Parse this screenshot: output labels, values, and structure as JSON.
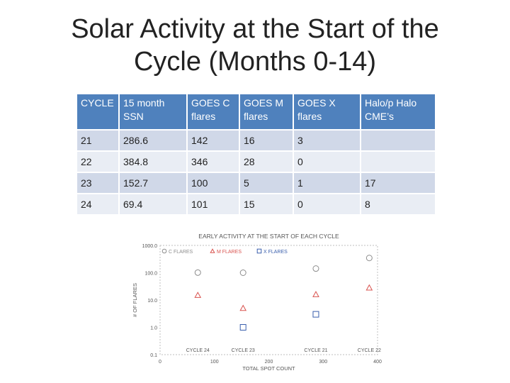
{
  "slide": {
    "title_line1": "Solar Activity at the Start of the",
    "title_line2": "Cycle (Months 0-14)"
  },
  "table": {
    "headers": [
      [
        "CYCLE",
        ""
      ],
      [
        "15 month",
        "SSN"
      ],
      [
        "GOES C",
        "flares"
      ],
      [
        "GOES M",
        "flares"
      ],
      [
        "GOES X",
        "flares"
      ],
      [
        "Halo/p Halo",
        "CME’s"
      ]
    ],
    "rows": [
      [
        "21",
        "286.6",
        "142",
        "16",
        "3",
        ""
      ],
      [
        "22",
        "384.8",
        "346",
        "28",
        "0",
        ""
      ],
      [
        "23",
        "152.7",
        "100",
        "5",
        "1",
        "17"
      ],
      [
        "24",
        "69.4",
        "101",
        "15",
        "0",
        "8"
      ]
    ]
  },
  "chart_data": {
    "type": "scatter",
    "title": "EARLY ACTIVITY AT THE START OF EACH CYCLE",
    "xlabel": "TOTAL SPOT COUNT",
    "ylabel": "# OF FLARES",
    "xlim": [
      0,
      400
    ],
    "x_ticks": [
      "0",
      "100",
      "200",
      "300",
      "400"
    ],
    "y_scale": "log",
    "ylim": [
      0.1,
      1000
    ],
    "y_ticks": [
      "0.1",
      "1.0",
      "10.0",
      "100.0",
      "1000.0"
    ],
    "series": [
      {
        "name": "C FLARES",
        "marker": "circle",
        "color": "#8c8c8c",
        "points": [
          [
            286.6,
            142
          ],
          [
            384.8,
            346
          ],
          [
            152.7,
            100
          ],
          [
            69.4,
            101
          ]
        ]
      },
      {
        "name": "M FLARES",
        "marker": "triangle",
        "color": "#d9534f",
        "points": [
          [
            286.6,
            16
          ],
          [
            384.8,
            28
          ],
          [
            152.7,
            5
          ],
          [
            69.4,
            15
          ]
        ]
      },
      {
        "name": "X FLARES",
        "marker": "square",
        "color": "#3a5fad",
        "points": [
          [
            286.6,
            3
          ],
          [
            152.7,
            1
          ]
        ]
      }
    ],
    "annotations": [
      {
        "text": "CYCLE 24",
        "x": 69.4
      },
      {
        "text": "CYCLE 23",
        "x": 152.7
      },
      {
        "text": "CYCLE 21",
        "x": 286.6
      },
      {
        "text": "CYCLE 22",
        "x": 384.8
      }
    ]
  }
}
